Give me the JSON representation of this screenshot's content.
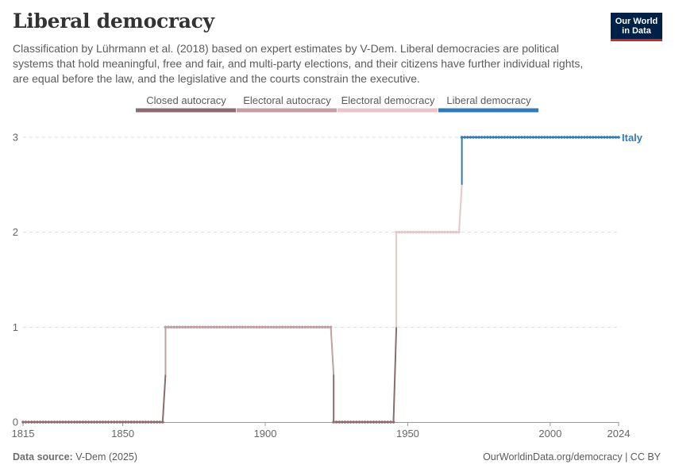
{
  "header": {
    "title": "Liberal democracy",
    "subtitle": "Classification by Lührmann et al. (2018) based on expert estimates by V-Dem. Liberal democracies are political systems that hold meaningful, free and fair, and multi-party elections, and their citizens have further individual rights, are equal before the law, and the legislative and the courts constrain the executive."
  },
  "logo": {
    "line1": "Our World",
    "line2": "in Data"
  },
  "footer": {
    "source_label": "Data source:",
    "source_value": "V-Dem (2025)",
    "url": "OurWorldinData.org/democracy | CC BY"
  },
  "colors": {
    "closed_autocracy": "#8c6c6f",
    "electoral_autocracy": "#c49fa2",
    "electoral_democracy": "#e8c6c8",
    "liberal_democracy": "#2f7bb9"
  },
  "chart_data": {
    "type": "line",
    "title": "Liberal democracy",
    "xlabel": "",
    "ylabel": "",
    "xlim": [
      1815,
      2024
    ],
    "ylim": [
      0,
      3
    ],
    "x_ticks": [
      1815,
      1850,
      1900,
      1950,
      2000,
      2024
    ],
    "y_ticks": [
      0,
      1,
      2,
      3
    ],
    "grid": "horizontal dashed",
    "legend": {
      "placement": "top",
      "entries": [
        {
          "label": "Closed autocracy",
          "value": 0,
          "color": "#8c6c6f"
        },
        {
          "label": "Electoral autocracy",
          "value": 1,
          "color": "#c49fa2"
        },
        {
          "label": "Electoral democracy",
          "value": 2,
          "color": "#e8c6c8"
        },
        {
          "label": "Liberal democracy",
          "value": 3,
          "color": "#2f7bb9"
        }
      ]
    },
    "series": [
      {
        "name": "Italy",
        "segments": [
          {
            "start": 1815,
            "end": 1864,
            "value": 0
          },
          {
            "start": 1865,
            "end": 1923,
            "value": 1
          },
          {
            "start": 1924,
            "end": 1945,
            "value": 0
          },
          {
            "start": 1946,
            "end": 1968,
            "value": 2
          },
          {
            "start": 1969,
            "end": 2024,
            "value": 3
          }
        ]
      }
    ]
  }
}
